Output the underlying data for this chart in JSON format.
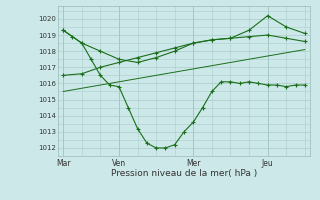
{
  "bg_color": "#cce8e8",
  "grid_color": "#aacccc",
  "line_color": "#1a6e1a",
  "xlabel": "Pression niveau de la mer( hPa )",
  "ylim": [
    1011.5,
    1020.8
  ],
  "yticks": [
    1012,
    1013,
    1014,
    1015,
    1016,
    1017,
    1018,
    1019,
    1020
  ],
  "xtick_labels": [
    "Mar",
    "Ven",
    "Mer",
    "Jeu"
  ],
  "xtick_positions": [
    0,
    3,
    7,
    11
  ],
  "xlim": [
    -0.3,
    13.3
  ],
  "series1_x": [
    0,
    0.5,
    1,
    1.5,
    2,
    2.5,
    3,
    3.5,
    4,
    4.5,
    5,
    5.5,
    6,
    6.5,
    7,
    7.5,
    8,
    8.5,
    9,
    9.5,
    10,
    10.5,
    11,
    11.5,
    12,
    12.5,
    13
  ],
  "series1_y": [
    1019.3,
    1018.9,
    1018.5,
    1017.5,
    1016.5,
    1015.9,
    1015.8,
    1014.5,
    1013.2,
    1012.3,
    1012.0,
    1012.0,
    1012.2,
    1013.0,
    1013.6,
    1014.5,
    1015.5,
    1016.1,
    1016.1,
    1016.0,
    1016.1,
    1016.0,
    1015.9,
    1015.9,
    1015.8,
    1015.9,
    1015.9
  ],
  "series2_x": [
    0,
    1,
    2,
    3,
    4,
    5,
    6,
    7,
    8,
    9,
    10,
    11,
    12,
    13
  ],
  "series2_y": [
    1016.5,
    1016.6,
    1017.0,
    1017.3,
    1017.6,
    1017.9,
    1018.2,
    1018.5,
    1018.7,
    1018.8,
    1018.9,
    1019.0,
    1018.8,
    1018.6
  ],
  "series3_x": [
    0,
    1,
    2,
    3,
    4,
    5,
    6,
    7,
    8,
    9,
    10,
    11,
    12,
    13
  ],
  "series3_y": [
    1015.5,
    1015.7,
    1015.9,
    1016.1,
    1016.3,
    1016.5,
    1016.7,
    1016.9,
    1017.1,
    1017.3,
    1017.5,
    1017.7,
    1017.9,
    1018.1
  ],
  "series4_x": [
    0,
    1,
    2,
    3,
    4,
    5,
    6,
    7,
    8,
    9,
    10,
    11,
    12,
    13
  ],
  "series4_y": [
    1019.3,
    1018.5,
    1018.0,
    1017.5,
    1017.3,
    1017.6,
    1018.0,
    1018.5,
    1018.7,
    1018.8,
    1019.3,
    1020.2,
    1019.5,
    1019.1
  ]
}
